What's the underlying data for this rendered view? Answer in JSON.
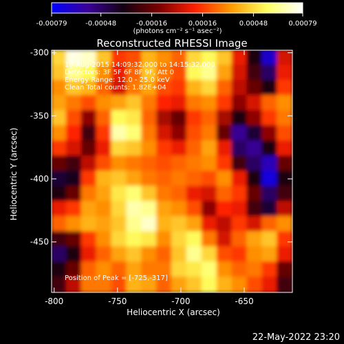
{
  "title": "Reconstructed RHESSI Image",
  "info_lines": [
    "19-Aug-2015 14:09:32.000 to 14:15:32.000",
    "Detectors: 3F 5F 6F 8F 9F, Att 0",
    "Energy Range: 12.0 - 25.0 keV",
    "Clean     Total counts: 1.82E+04"
  ],
  "peak_label": "Position of Peak = [-725,-317]",
  "footer_date": "22-May-2022 23:20",
  "colorbar": {
    "ticks": [
      "-0.00079",
      "-0.00048",
      "-0.00016",
      "0.00016",
      "0.00048",
      "0.00079"
    ],
    "tick_values": [
      -0.00079,
      -0.00048,
      -0.00016,
      0.00016,
      0.00048,
      0.00079
    ],
    "unit_label": "(photons cm⁻² s⁻¹ asec⁻²)",
    "range": [
      -0.00079,
      0.00079
    ],
    "colors": [
      "#0000ff",
      "#3a0099",
      "#140012",
      "#7a0000",
      "#ff2000",
      "#ff9a00",
      "#ffff60",
      "#ffffff"
    ]
  },
  "chart_data": {
    "type": "heatmap",
    "title": "Reconstructed RHESSI Image",
    "xlabel": "Heliocentric X (arcsec)",
    "ylabel": "Heliocentric Y (arcsec)",
    "xlim": [
      -802,
      -612
    ],
    "ylim": [
      -490,
      -298
    ],
    "x_ticks": [
      -800,
      -750,
      -700,
      -650
    ],
    "x_tick_labels": [
      "-800",
      "-750",
      "-700",
      "-650"
    ],
    "y_ticks": [
      -450,
      -400,
      -350,
      -300
    ],
    "y_tick_labels": [
      "-450",
      "-400",
      "-350",
      "-300"
    ],
    "value_unit": "photons cm^-2 s^-1 asec^-2",
    "value_range": [
      -0.00079,
      0.00079
    ],
    "peak": [
      -725,
      -317
    ],
    "grid": false,
    "approx_values": [
      [
        0.6,
        0.95,
        0.9,
        0.55,
        0.2,
        0.25,
        0.5,
        0.4,
        0.3,
        0.6,
        0.7,
        0.55,
        0.1,
        -0.4,
        -0.85,
        0.05
      ],
      [
        0.55,
        0.8,
        0.7,
        0.4,
        0.1,
        0.3,
        0.55,
        0.35,
        0.25,
        0.7,
        0.8,
        0.45,
        0.05,
        -0.3,
        -0.6,
        0.1
      ],
      [
        0.4,
        0.55,
        0.5,
        0.3,
        0.05,
        0.35,
        0.45,
        0.25,
        0.2,
        0.5,
        0.6,
        0.3,
        0.0,
        -0.2,
        -0.4,
        0.2
      ],
      [
        0.45,
        0.35,
        0.25,
        0.4,
        0.45,
        0.55,
        0.35,
        0.15,
        0.1,
        0.35,
        0.4,
        0.2,
        -0.1,
        0.05,
        0.3,
        0.4
      ],
      [
        0.55,
        0.25,
        -0.1,
        0.3,
        0.7,
        0.65,
        0.3,
        -0.05,
        -0.2,
        0.2,
        0.3,
        -0.05,
        -0.4,
        -0.1,
        0.2,
        0.35
      ],
      [
        0.4,
        0.15,
        -0.3,
        0.2,
        0.85,
        0.75,
        0.35,
        0.05,
        -0.1,
        0.25,
        0.35,
        -0.2,
        -0.7,
        -0.5,
        -0.1,
        0.25
      ],
      [
        0.2,
        0.05,
        -0.2,
        0.1,
        0.6,
        0.55,
        0.4,
        0.2,
        0.1,
        0.3,
        0.45,
        0.1,
        -0.6,
        -0.7,
        -0.4,
        0.1
      ],
      [
        -0.2,
        -0.3,
        0.0,
        0.25,
        0.4,
        0.35,
        0.3,
        0.25,
        0.3,
        0.35,
        0.4,
        0.2,
        -0.3,
        -0.6,
        -0.8,
        -0.2
      ],
      [
        -0.5,
        -0.45,
        0.2,
        0.5,
        0.55,
        0.45,
        0.35,
        0.3,
        0.35,
        0.3,
        0.25,
        0.4,
        0.1,
        -0.4,
        -0.9,
        -0.4
      ],
      [
        -0.4,
        -0.2,
        0.35,
        0.45,
        0.65,
        0.75,
        0.55,
        0.35,
        0.3,
        0.1,
        0.05,
        0.3,
        0.2,
        -0.2,
        -0.6,
        -0.3
      ],
      [
        0.1,
        0.2,
        0.45,
        0.4,
        0.6,
        0.85,
        0.8,
        0.45,
        0.4,
        0.25,
        -0.1,
        0.15,
        0.1,
        -0.3,
        -0.5,
        0.0
      ],
      [
        0.3,
        0.4,
        0.5,
        0.45,
        0.55,
        0.8,
        0.9,
        0.5,
        0.55,
        0.45,
        0.1,
        0.0,
        0.2,
        0.05,
        0.3,
        0.4
      ],
      [
        -0.3,
        -0.2,
        0.2,
        0.4,
        0.6,
        0.7,
        0.65,
        0.4,
        0.6,
        0.7,
        0.35,
        0.05,
        0.3,
        0.45,
        0.55,
        0.2
      ],
      [
        -0.6,
        -0.4,
        0.1,
        0.3,
        0.45,
        0.55,
        0.4,
        0.3,
        0.55,
        0.8,
        0.6,
        0.25,
        0.2,
        0.4,
        0.45,
        0.1
      ],
      [
        -0.4,
        -0.2,
        0.3,
        0.4,
        0.3,
        0.45,
        0.35,
        0.35,
        0.6,
        0.65,
        0.75,
        0.4,
        0.3,
        0.35,
        0.2,
        -0.2
      ],
      [
        -0.3,
        0.0,
        0.35,
        0.35,
        0.25,
        0.5,
        0.45,
        0.3,
        0.45,
        0.55,
        0.7,
        0.5,
        0.4,
        0.25,
        0.1,
        -0.3
      ]
    ]
  }
}
